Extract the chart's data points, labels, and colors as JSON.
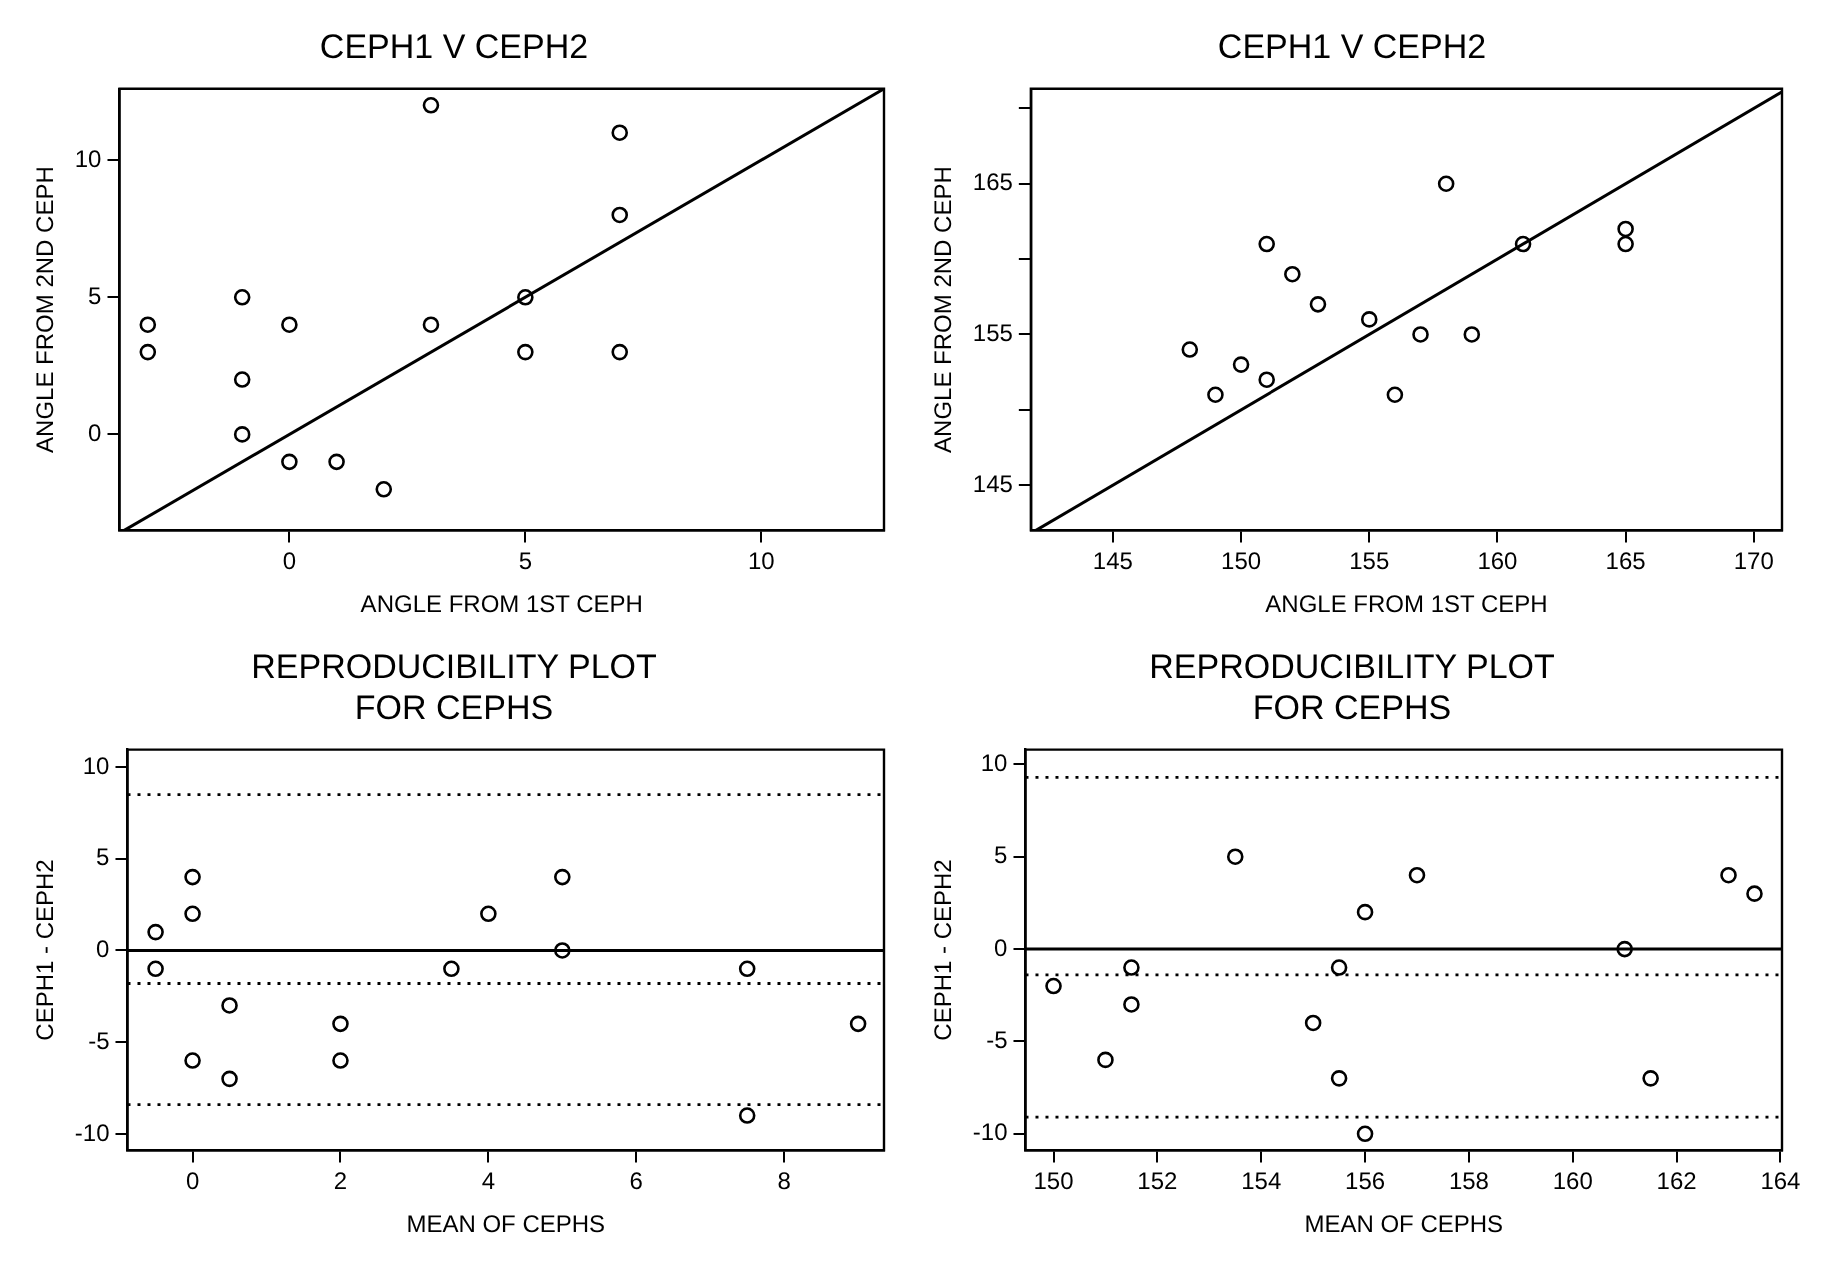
{
  "chart_data": [
    {
      "type": "scatter",
      "title": "CEPH1 V CEPH2",
      "xlabel": "ANGLE FROM 1ST CEPH",
      "ylabel": "ANGLE FROM 2ND CEPH",
      "xlim": [
        -3.6,
        12.6
      ],
      "ylim": [
        -3.5,
        12.6
      ],
      "xticks": [
        0,
        5,
        10
      ],
      "yticks": [
        0,
        5,
        10
      ],
      "series": [
        {
          "type": "scatter",
          "marker": "circle",
          "color": "#000000",
          "x": [
            -3,
            -3,
            -1,
            -1,
            -1,
            0,
            0,
            1,
            2,
            3,
            3,
            5,
            5,
            7,
            7,
            7
          ],
          "values": [
            4,
            3,
            5,
            2,
            0,
            4,
            -1,
            -1,
            -2,
            12,
            4,
            5,
            3,
            11,
            8,
            3
          ]
        },
        {
          "type": "line",
          "marker": "none",
          "color": "#000000",
          "line_style": "solid",
          "x": [
            -3.5,
            12.6
          ],
          "values": [
            -3.5,
            12.6
          ]
        }
      ]
    },
    {
      "type": "scatter",
      "title": "CEPH1 V CEPH2",
      "xlabel": "ANGLE FROM 1ST CEPH",
      "ylabel": "ANGLE FROM 2ND CEPH",
      "xlim": [
        141.8,
        171.1
      ],
      "ylim": [
        142,
        171.3
      ],
      "xticks": [
        145,
        150,
        155,
        160,
        165,
        170
      ],
      "yticks": [
        145,
        {
          "value": 150,
          "label": null
        },
        155,
        {
          "value": 160,
          "label": null
        },
        165,
        {
          "value": 170,
          "label": null
        }
      ],
      "series": [
        {
          "type": "scatter",
          "marker": "circle",
          "color": "#000000",
          "x": [
            148,
            149,
            150,
            151,
            151,
            152,
            153,
            155,
            156,
            157,
            158,
            159,
            161,
            165,
            165
          ],
          "values": [
            154,
            151,
            153,
            152,
            161,
            159,
            157,
            156,
            151,
            155,
            165,
            155,
            161,
            162,
            161
          ]
        },
        {
          "type": "line",
          "marker": "none",
          "color": "#000000",
          "line_style": "solid",
          "x": [
            142,
            171.1
          ],
          "values": [
            142,
            171.1
          ]
        }
      ]
    },
    {
      "type": "scatter",
      "title": "REPRODUCIBILITY PLOT\nFOR CEPHS",
      "xlabel": "MEAN OF CEPHS",
      "ylabel": "CEPH1 - CEPH2",
      "xlim": [
        -0.88,
        9.35
      ],
      "ylim": [
        -10.9,
        10.95
      ],
      "xticks": [
        0,
        2,
        4,
        6,
        8
      ],
      "yticks": [
        -10,
        -5,
        0,
        5,
        10
      ],
      "series": [
        {
          "type": "scatter",
          "marker": "circle",
          "color": "#000000",
          "x": [
            -0.5,
            -0.5,
            0,
            0,
            0,
            0.5,
            0.5,
            2,
            2,
            3.5,
            4,
            5,
            5,
            7.5,
            7.5,
            9
          ],
          "values": [
            1,
            -1,
            4,
            2,
            -6,
            -3,
            -7,
            -4,
            -6,
            -1,
            2,
            4,
            0,
            -1,
            -9,
            -4
          ]
        }
      ],
      "ref_lines": [
        {
          "axis": "y",
          "value": 0,
          "line_style": "solid"
        },
        {
          "axis": "y",
          "value": 8.5,
          "line_style": "dotted"
        },
        {
          "axis": "y",
          "value": -1.8,
          "line_style": "dotted"
        },
        {
          "axis": "y",
          "value": -8.4,
          "line_style": "dotted"
        }
      ]
    },
    {
      "type": "scatter",
      "title": "REPRODUCIBILITY PLOT\nFOR CEPHS",
      "xlabel": "MEAN OF CEPHS",
      "ylabel": "CEPH1 - CEPH2",
      "xlim": [
        149.46,
        164.03
      ],
      "ylim": [
        -10.9,
        10.8
      ],
      "xticks": [
        150,
        152,
        154,
        156,
        158,
        160,
        162,
        164
      ],
      "yticks": [
        -10,
        -5,
        0,
        5,
        10
      ],
      "series": [
        {
          "type": "scatter",
          "marker": "circle",
          "color": "#000000",
          "x": [
            150,
            151,
            151.5,
            151.5,
            153.5,
            155,
            155.5,
            155.5,
            156,
            156,
            157,
            161,
            161.5,
            163,
            163.5
          ],
          "values": [
            -2,
            -6,
            -1,
            -3,
            5,
            -4,
            -1,
            -7,
            2,
            -10,
            4,
            0,
            -7,
            4,
            3
          ]
        }
      ],
      "ref_lines": [
        {
          "axis": "y",
          "value": 0,
          "line_style": "solid"
        },
        {
          "axis": "y",
          "value": 9.3,
          "line_style": "dotted"
        },
        {
          "axis": "y",
          "value": -1.4,
          "line_style": "dotted"
        },
        {
          "axis": "y",
          "value": -9.1,
          "line_style": "dotted"
        }
      ]
    }
  ]
}
